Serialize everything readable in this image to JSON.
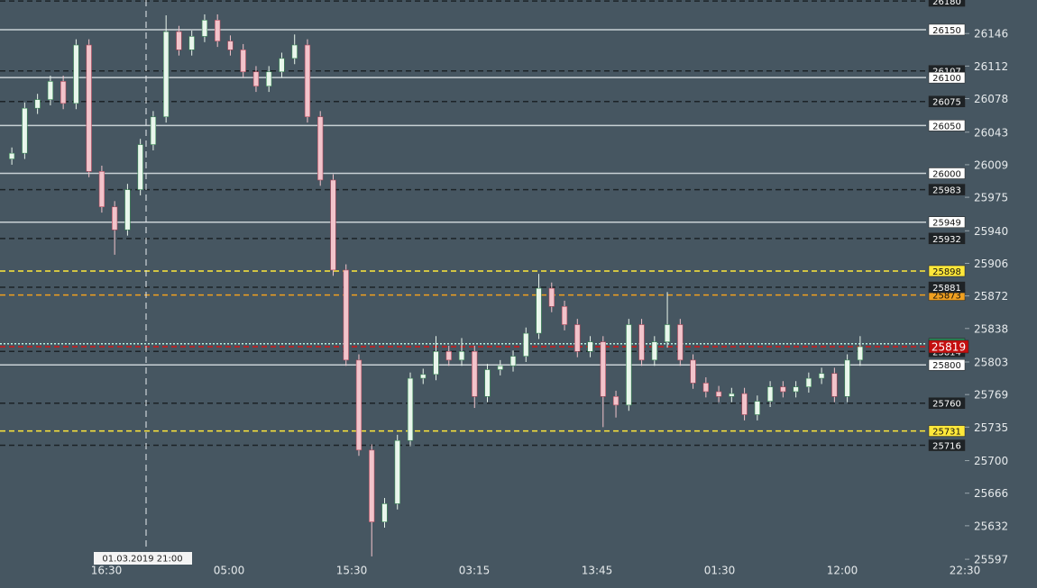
{
  "chart_data": {
    "type": "candlestick",
    "ylim": [
      25567,
      26181
    ],
    "yticks": [
      26146,
      26112,
      26078,
      26043,
      26009,
      25975,
      25940,
      25906,
      25872,
      25838,
      25803,
      25769,
      25735,
      25700,
      25666,
      25632,
      25597
    ],
    "time_labels": [
      "16:30",
      "05:00",
      "15:30",
      "03:15",
      "13:45",
      "01:30",
      "12:00",
      "22:30"
    ],
    "crosshair_label": "01.03.2019 21:00",
    "up_color": "#e9f6ec",
    "down_color": "#f2c4cb",
    "ohlc": [
      [
        26015,
        26027,
        26009,
        26021
      ],
      [
        26021,
        26074,
        26015,
        26068
      ],
      [
        26068,
        26083,
        26062,
        26077
      ],
      [
        26077,
        26102,
        26071,
        26096
      ],
      [
        26096,
        26102,
        26067,
        26073
      ],
      [
        26073,
        26140,
        26067,
        26134
      ],
      [
        26134,
        26140,
        25996,
        26002
      ],
      [
        26002,
        26008,
        25959,
        25965
      ],
      [
        25965,
        25971,
        25915,
        25941
      ],
      [
        25941,
        25989,
        25935,
        25983
      ],
      [
        25983,
        26036,
        25977,
        26030
      ],
      [
        26030,
        26065,
        26024,
        26059
      ],
      [
        26059,
        26165,
        26053,
        26148
      ],
      [
        26148,
        26154,
        26123,
        26129
      ],
      [
        26129,
        26149,
        26123,
        26143
      ],
      [
        26143,
        26166,
        26137,
        26160
      ],
      [
        26160,
        26166,
        26132,
        26138
      ],
      [
        26138,
        26144,
        26123,
        26129
      ],
      [
        26129,
        26135,
        26100,
        26106
      ],
      [
        26106,
        26112,
        26085,
        26091
      ],
      [
        26091,
        26112,
        26085,
        26106
      ],
      [
        26106,
        26126,
        26100,
        26120
      ],
      [
        26120,
        26145,
        26114,
        26134
      ],
      [
        26134,
        26140,
        26053,
        26059
      ],
      [
        26059,
        26065,
        25987,
        25993
      ],
      [
        25993,
        25999,
        25893,
        25899
      ],
      [
        25899,
        25905,
        25799,
        25805
      ],
      [
        25805,
        25811,
        25705,
        25711
      ],
      [
        25711,
        25717,
        25600,
        25636
      ],
      [
        25636,
        25661,
        25630,
        25655
      ],
      [
        25655,
        25727,
        25649,
        25721
      ],
      [
        25721,
        25792,
        25715,
        25786
      ],
      [
        25786,
        25796,
        25780,
        25790
      ],
      [
        25790,
        25830,
        25784,
        25814
      ],
      [
        25814,
        25820,
        25799,
        25805
      ],
      [
        25805,
        25828,
        25799,
        25814
      ],
      [
        25814,
        25820,
        25755,
        25767
      ],
      [
        25767,
        25801,
        25761,
        25795
      ],
      [
        25795,
        25805,
        25789,
        25799
      ],
      [
        25799,
        25815,
        25793,
        25809
      ],
      [
        25809,
        25839,
        25803,
        25833
      ],
      [
        25833,
        25895,
        25827,
        25880
      ],
      [
        25880,
        25886,
        25855,
        25861
      ],
      [
        25861,
        25867,
        25836,
        25842
      ],
      [
        25842,
        25848,
        25808,
        25814
      ],
      [
        25814,
        25830,
        25808,
        25824
      ],
      [
        25824,
        25830,
        25735,
        25767
      ],
      [
        25767,
        25773,
        25745,
        25758
      ],
      [
        25758,
        25848,
        25752,
        25842
      ],
      [
        25842,
        25848,
        25799,
        25805
      ],
      [
        25805,
        25830,
        25799,
        25824
      ],
      [
        25824,
        25876,
        25818,
        25842
      ],
      [
        25842,
        25848,
        25799,
        25805
      ],
      [
        25805,
        25811,
        25775,
        25781
      ],
      [
        25781,
        25787,
        25766,
        25772
      ],
      [
        25772,
        25778,
        25761,
        25767
      ],
      [
        25767,
        25776,
        25761,
        25770
      ],
      [
        25770,
        25776,
        25742,
        25748
      ],
      [
        25748,
        25768,
        25742,
        25762
      ],
      [
        25762,
        25783,
        25756,
        25777
      ],
      [
        25777,
        25783,
        25766,
        25772
      ],
      [
        25772,
        25783,
        25766,
        25777
      ],
      [
        25777,
        25792,
        25771,
        25786
      ],
      [
        25786,
        25797,
        25780,
        25791
      ],
      [
        25791,
        25797,
        25761,
        25767
      ],
      [
        25767,
        25811,
        25761,
        25805
      ],
      [
        25805,
        25830,
        25799,
        25819
      ]
    ],
    "levels": [
      {
        "value": 26180,
        "style": "dashed",
        "color": "#1c2327",
        "label_bg": "#1e2326",
        "label_fg": "#ffffff"
      },
      {
        "value": 26150,
        "style": "solid",
        "color": "#c9d1d5",
        "label_bg": "#ffffff",
        "label_fg": "#111111"
      },
      {
        "value": 26107,
        "style": "dashed",
        "color": "#1c2327",
        "label_bg": "#1e2326",
        "label_fg": "#ffffff"
      },
      {
        "value": 26100,
        "style": "solid",
        "color": "#c9d1d5",
        "label_bg": "#ffffff",
        "label_fg": "#111111"
      },
      {
        "value": 26075,
        "style": "dashed",
        "color": "#1c2327",
        "label_bg": "#1e2326",
        "label_fg": "#ffffff"
      },
      {
        "value": 26050,
        "style": "solid",
        "color": "#c9d1d5",
        "label_bg": "#ffffff",
        "label_fg": "#111111"
      },
      {
        "value": 26000,
        "style": "solid",
        "color": "#c9d1d5",
        "label_bg": "#ffffff",
        "label_fg": "#111111"
      },
      {
        "value": 25983,
        "style": "dashed",
        "color": "#1c2327",
        "label_bg": "#1e2326",
        "label_fg": "#ffffff"
      },
      {
        "value": 25949,
        "style": "solid",
        "color": "#c9d1d5",
        "label_bg": "#ffffff",
        "label_fg": "#111111"
      },
      {
        "value": 25932,
        "style": "dashed",
        "color": "#1c2327",
        "label_bg": "#1e2326",
        "label_fg": "#ffffff"
      },
      {
        "value": 25873,
        "style": "dashed",
        "color": "#f0a020",
        "label_bg": "#f0a020",
        "label_fg": "#111111"
      },
      {
        "value": 25881,
        "style": "dashed",
        "color": "#1c2327",
        "label_bg": "#1e2326",
        "label_fg": "#ffffff"
      },
      {
        "value": 25898,
        "style": "dashed",
        "color": "#ffe83a",
        "label_bg": "#ffe83a",
        "label_fg": "#111111"
      },
      {
        "value": 25822,
        "style": "dotted",
        "color": "#b8f0e0",
        "label_bg": "#2e8b57",
        "label_fg": "#ffffff"
      },
      {
        "value": 25814,
        "style": "dashed",
        "color": "#1c2327",
        "label_bg": "#1e2326",
        "label_fg": "#ffffff"
      },
      {
        "value": 25819,
        "style": "dashed",
        "color": "#d01818",
        "label_bg": "#c40f0f",
        "label_fg": "#ffffff"
      },
      {
        "value": 25800,
        "style": "solid",
        "color": "#c9d1d5",
        "label_bg": "#ffffff",
        "label_fg": "#111111"
      },
      {
        "value": 25760,
        "style": "dashed",
        "color": "#1c2327",
        "label_bg": "#1e2326",
        "label_fg": "#ffffff"
      },
      {
        "value": 25731,
        "style": "dashed",
        "color": "#ffe83a",
        "label_bg": "#ffe83a",
        "label_fg": "#111111"
      },
      {
        "value": 25716,
        "style": "dashed",
        "color": "#1c2327",
        "label_bg": "#1e2326",
        "label_fg": "#ffffff"
      }
    ]
  }
}
